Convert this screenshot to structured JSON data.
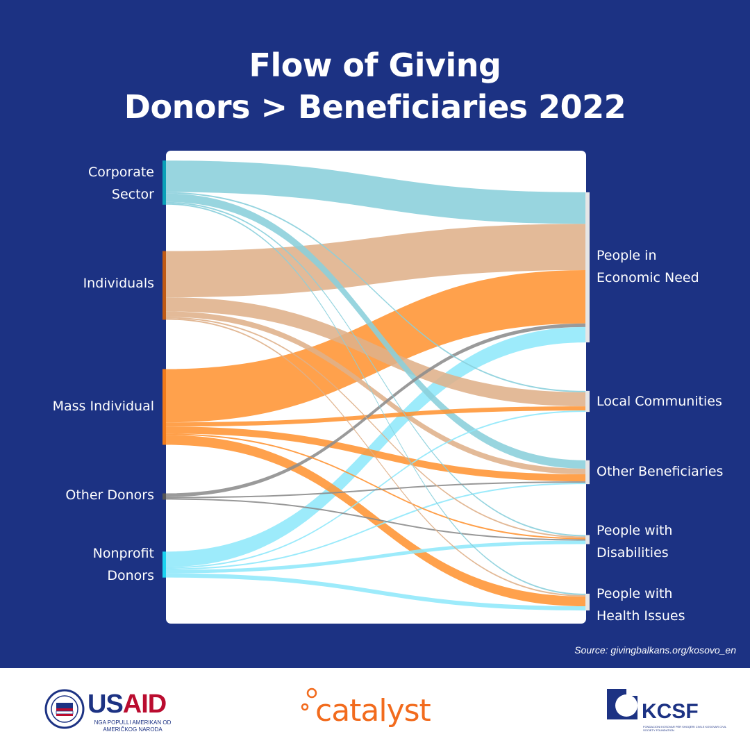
{
  "header": {
    "title_line1": "Flow of Giving",
    "title_line2": "Donors > Beneficiaries 2022"
  },
  "chart_data": {
    "type": "sankey",
    "sources": [
      {
        "id": "corporate",
        "label_lines": [
          "Corporate",
          "Sector"
        ],
        "color": "#0aa0b8",
        "flow_color": "#8acfdb"
      },
      {
        "id": "individuals",
        "label_lines": [
          "Individuals"
        ],
        "color": "#c05a14",
        "flow_color": "#dfb08a"
      },
      {
        "id": "mass",
        "label_lines": [
          "Mass Individual"
        ],
        "color": "#f07a1a",
        "flow_color": "#ff9433"
      },
      {
        "id": "other_donors",
        "label_lines": [
          "Other Donors"
        ],
        "color": "#555555",
        "flow_color": "#8c8c8c"
      },
      {
        "id": "nonprofit",
        "label_lines": [
          "Nonprofit",
          "Donors"
        ],
        "color": "#19d2f0",
        "flow_color": "#8fe8fb"
      }
    ],
    "targets": [
      {
        "id": "economic",
        "label_lines": [
          "People in",
          "Economic Need"
        ]
      },
      {
        "id": "local",
        "label_lines": [
          "Local Communities"
        ]
      },
      {
        "id": "other_ben",
        "label_lines": [
          "Other Beneficiaries"
        ]
      },
      {
        "id": "disab",
        "label_lines": [
          "People with",
          "Disabilities"
        ]
      },
      {
        "id": "health",
        "label_lines": [
          "People with",
          "Health Issues"
        ]
      }
    ],
    "flows": [
      {
        "source": "corporate",
        "target": "economic",
        "value": 45
      },
      {
        "source": "individuals",
        "target": "economic",
        "value": 66
      },
      {
        "source": "mass",
        "target": "economic",
        "value": 76
      },
      {
        "source": "other_donors",
        "target": "economic",
        "value": 5
      },
      {
        "source": "nonprofit",
        "target": "economic",
        "value": 22
      },
      {
        "source": "individuals",
        "target": "local",
        "value": 20
      },
      {
        "source": "mass",
        "target": "local",
        "value": 6
      },
      {
        "source": "corporate",
        "target": "local",
        "value": 2
      },
      {
        "source": "nonprofit",
        "target": "local",
        "value": 2
      },
      {
        "source": "corporate",
        "target": "other_ben",
        "value": 12
      },
      {
        "source": "individuals",
        "target": "other_ben",
        "value": 8
      },
      {
        "source": "mass",
        "target": "other_ben",
        "value": 10
      },
      {
        "source": "nonprofit",
        "target": "other_ben",
        "value": 2
      },
      {
        "source": "other_donors",
        "target": "other_ben",
        "value": 1
      },
      {
        "source": "corporate",
        "target": "disab",
        "value": 2
      },
      {
        "source": "individuals",
        "target": "disab",
        "value": 1
      },
      {
        "source": "mass",
        "target": "disab",
        "value": 2
      },
      {
        "source": "other_donors",
        "target": "disab",
        "value": 1
      },
      {
        "source": "nonprofit",
        "target": "disab",
        "value": 5
      },
      {
        "source": "corporate",
        "target": "health",
        "value": 1
      },
      {
        "source": "individuals",
        "target": "health",
        "value": 1
      },
      {
        "source": "mass",
        "target": "health",
        "value": 14
      },
      {
        "source": "nonprofit",
        "target": "health",
        "value": 6
      }
    ]
  },
  "source_note": "Source: givingbalkans.org/kosovo_en",
  "logos": {
    "usaid_word_us": "US",
    "usaid_word_aid": "AID",
    "usaid_sub": "NGA POPULLI AMERIKAN OD AMERIČKOG NARODA",
    "catalyst_word": "catalyst",
    "kcsf_word": "KCSF",
    "kcsf_sub": "FONDACIONI KOSOVAR PËR SHOQËRI CIVILE KOSOVAR CIVIL SOCIETY FOUNDATION"
  },
  "colors": {
    "background": "#1c3283",
    "panel": "#ffffff",
    "usaid_blue": "#1c3283",
    "usaid_red": "#ba0c2f",
    "catalyst_orange": "#f26b1d"
  }
}
